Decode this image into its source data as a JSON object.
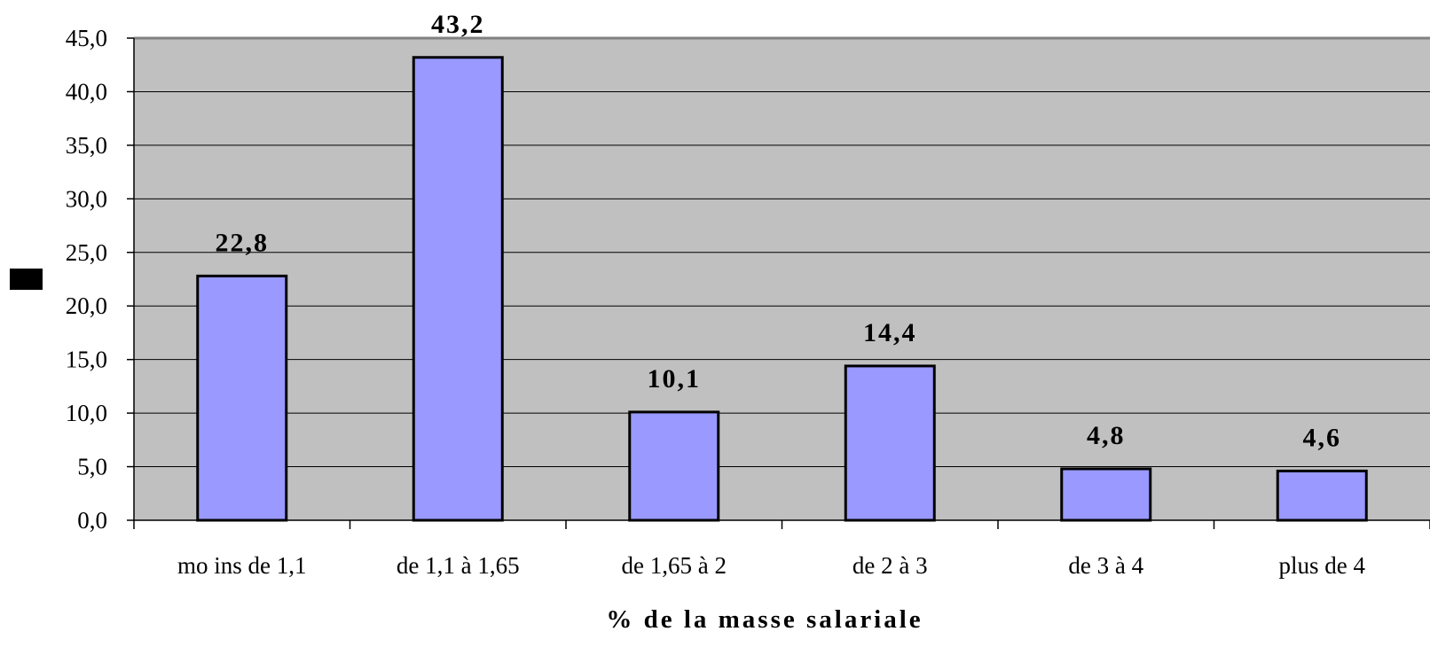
{
  "chart_data": {
    "type": "bar",
    "categories": [
      "mo ins de 1,1",
      "de 1,1 à 1,65",
      "de 1,65 à 2",
      "de 2 à 3",
      "de 3 à 4",
      "plus de 4"
    ],
    "values": [
      22.8,
      43.2,
      10.1,
      14.4,
      4.8,
      4.6
    ],
    "data_labels": [
      "22,8",
      "43,2",
      "10,1",
      "14,4",
      "4,8",
      "4,6"
    ],
    "ylim": [
      0,
      45
    ],
    "yticks": [
      "0,0",
      "5,0",
      "10,0",
      "15,0",
      "20,0",
      "25,0",
      "30,0",
      "35,0",
      "40,0",
      "45,0"
    ],
    "xlabel": "% de la masse salariale",
    "ylabel": "",
    "title": "",
    "grid": true,
    "legend": "left",
    "colors": {
      "plot_bg": "#c0c0c0",
      "bar_fill": "#9999ff",
      "bar_stroke": "#000000",
      "gridline": "#000000",
      "legend_key": "#000000"
    }
  }
}
